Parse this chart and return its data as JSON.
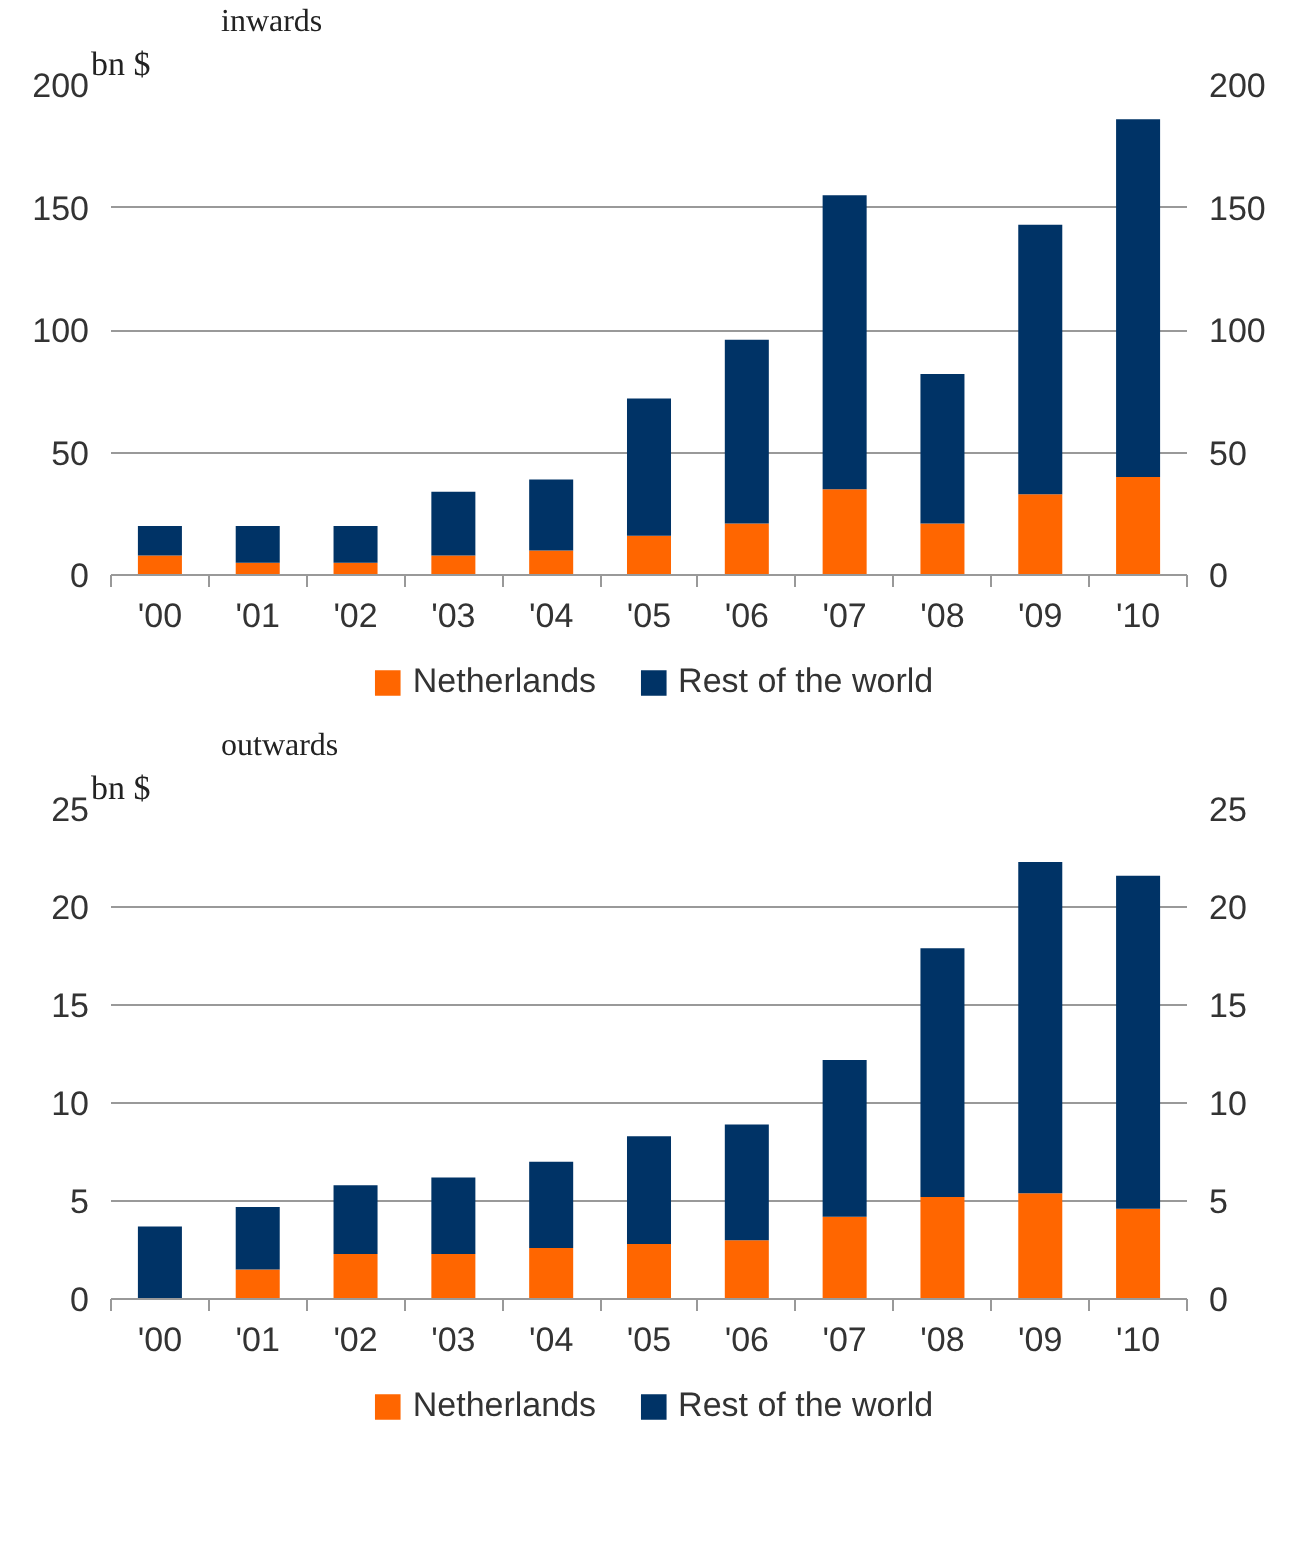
{
  "chart_data": [
    {
      "type": "bar",
      "stacked": true,
      "title": "inwards",
      "ylabel": "bn $",
      "categories": [
        "'00",
        "'01",
        "'02",
        "'03",
        "'04",
        "'05",
        "'06",
        "'07",
        "'08",
        "'09",
        "'10"
      ],
      "series": [
        {
          "name": "Netherlands",
          "color": "#ff6600",
          "values": [
            8,
            5,
            5,
            8,
            10,
            16,
            21,
            35,
            21,
            33,
            40
          ]
        },
        {
          "name": "Rest of the world",
          "color": "#003366",
          "values": [
            12,
            15,
            15,
            26,
            29,
            56,
            75,
            120,
            61,
            110,
            146
          ]
        }
      ],
      "ylim": [
        0,
        200
      ],
      "yticks": [
        0,
        50,
        100,
        150,
        200
      ],
      "y2lim": [
        0,
        200
      ],
      "y2ticks": [
        0,
        50,
        100,
        150,
        200
      ],
      "grid": "y",
      "legend": "bottom"
    },
    {
      "type": "bar",
      "stacked": true,
      "title": "outwards",
      "ylabel": "bn $",
      "categories": [
        "'00",
        "'01",
        "'02",
        "'03",
        "'04",
        "'05",
        "'06",
        "'07",
        "'08",
        "'09",
        "'10"
      ],
      "series": [
        {
          "name": "Netherlands",
          "color": "#ff6600",
          "values": [
            0,
            1.5,
            2.3,
            2.3,
            2.6,
            2.8,
            3.0,
            4.2,
            5.2,
            5.4,
            4.6
          ]
        },
        {
          "name": "Rest of the world",
          "color": "#003366",
          "values": [
            3.7,
            3.2,
            3.5,
            3.9,
            4.4,
            5.5,
            5.9,
            8.0,
            12.7,
            16.9,
            17.0
          ]
        }
      ],
      "ylim": [
        0,
        25
      ],
      "yticks": [
        0,
        5,
        10,
        15,
        20,
        25
      ],
      "y2lim": [
        0,
        25
      ],
      "y2ticks": [
        0,
        5,
        10,
        15,
        20,
        25
      ],
      "grid": "y",
      "legend": "bottom"
    }
  ]
}
